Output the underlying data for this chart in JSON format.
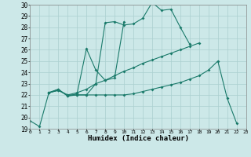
{
  "xlabel": "Humidex (Indice chaleur)",
  "bg_color": "#cce8e8",
  "line_color": "#1a7a6a",
  "grid_color": "#aacfcf",
  "xmin": 0,
  "xmax": 23,
  "ymin": 19,
  "ymax": 30,
  "series1_x": [
    0,
    1,
    2,
    3,
    4,
    5,
    6,
    7,
    8,
    9,
    10,
    11,
    12,
    13,
    14,
    15,
    16,
    17
  ],
  "series1_y": [
    19.7,
    19.2,
    22.2,
    22.5,
    21.9,
    22.0,
    22.0,
    23.0,
    28.4,
    28.5,
    28.2,
    28.3,
    28.8,
    30.2,
    29.5,
    29.6,
    28.0,
    26.5
  ],
  "series2_x": [
    2,
    3,
    4,
    5,
    6,
    7,
    8,
    9,
    10
  ],
  "series2_y": [
    22.2,
    22.5,
    21.9,
    22.1,
    26.1,
    24.2,
    23.3,
    23.5,
    28.5
  ],
  "series3_x": [
    2,
    3,
    4,
    5,
    6,
    7,
    8,
    9,
    10,
    11,
    12,
    13,
    14,
    15,
    16,
    17,
    18,
    19,
    20,
    21,
    22
  ],
  "series3_y": [
    22.2,
    22.4,
    22.0,
    22.2,
    22.5,
    23.0,
    23.3,
    23.7,
    24.1,
    24.4,
    24.8,
    25.1,
    25.4,
    25.7,
    26.0,
    26.3,
    26.6,
    null,
    null,
    null,
    null
  ],
  "series4_x": [
    2,
    3,
    4,
    5,
    6,
    7,
    8,
    9,
    10,
    11,
    12,
    13,
    14,
    15,
    16,
    17,
    18,
    19,
    20,
    21,
    22
  ],
  "series4_y": [
    22.2,
    22.4,
    22.0,
    22.0,
    22.0,
    22.0,
    22.0,
    22.0,
    22.0,
    22.1,
    22.3,
    22.5,
    22.7,
    22.9,
    23.1,
    23.4,
    23.7,
    24.2,
    25.0,
    21.7,
    19.5
  ]
}
